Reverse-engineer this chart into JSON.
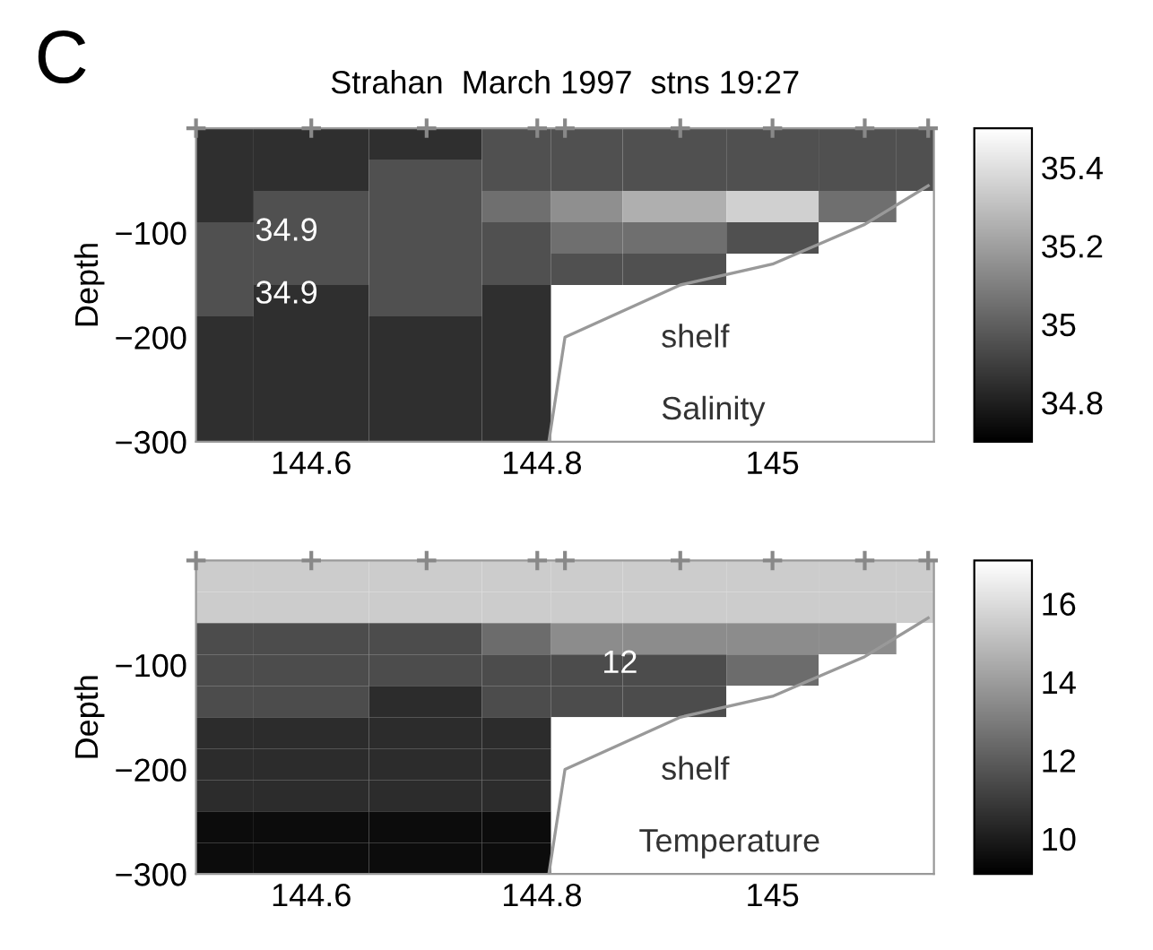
{
  "chart_data": [
    {
      "type": "heatmap",
      "title": "Strahan  March 1997  stns 19:27",
      "ylabel": "Depth",
      "x": [
        144.5,
        144.6,
        144.7,
        144.796,
        144.82,
        144.92,
        145.0,
        145.08,
        145.135
      ],
      "xlim": [
        144.5,
        145.14
      ],
      "ylim": [
        -300,
        0
      ],
      "xticks": [
        {
          "value": 144.6,
          "label": "144.6"
        },
        {
          "value": 144.8,
          "label": "144.8"
        },
        {
          "value": 145,
          "label": "145"
        }
      ],
      "yticks": [
        {
          "value": -300,
          "label": "−300"
        },
        {
          "value": -200,
          "label": "−200"
        },
        {
          "value": -100,
          "label": "−100"
        }
      ],
      "cells": [
        [
          34.85,
          34.85,
          34.85,
          34.95,
          34.95,
          34.95,
          34.95,
          34.95,
          34.95
        ],
        [
          34.85,
          34.85,
          34.95,
          34.95,
          34.95,
          34.95,
          34.95,
          34.95,
          34.95
        ],
        [
          34.85,
          34.95,
          34.95,
          35.05,
          35.15,
          35.25,
          35.35,
          35.05,
          null
        ],
        [
          34.95,
          34.95,
          34.95,
          34.95,
          35.05,
          35.05,
          34.95,
          null,
          null
        ],
        [
          34.95,
          34.95,
          34.95,
          34.95,
          34.95,
          34.95,
          null,
          null,
          null
        ],
        [
          34.95,
          34.85,
          34.95,
          34.85,
          null,
          null,
          null,
          null,
          null
        ],
        [
          34.85,
          34.85,
          34.85,
          34.85,
          null,
          null,
          null,
          null,
          null
        ],
        [
          34.85,
          34.85,
          34.85,
          34.85,
          null,
          null,
          null,
          null,
          null
        ],
        [
          34.85,
          34.85,
          34.85,
          34.85,
          null,
          null,
          null,
          null,
          null
        ],
        [
          34.85,
          34.85,
          34.85,
          34.85,
          null,
          null,
          null,
          null,
          null
        ]
      ],
      "clim": [
        34.7,
        35.5
      ],
      "cticks": [
        34.8,
        {
          "value": 35,
          "label": "35"
        },
        35.2,
        35.4
      ],
      "series": [
        {
          "type": "scatter",
          "marker": "cross",
          "color": "#888888",
          "x": [
            144.5,
            144.6,
            144.7,
            144.796,
            144.82,
            144.92,
            145.0,
            145.08,
            145.135
          ],
          "values": [
            0,
            0,
            0,
            0,
            0,
            0,
            0,
            0,
            0
          ]
        },
        {
          "type": "line",
          "color": "#999999",
          "x": [
            144.806,
            144.82,
            144.92,
            145.0,
            145.08,
            145.135
          ],
          "values": [
            -300,
            -200,
            -150,
            -130,
            -92,
            -55
          ]
        }
      ],
      "annotations": [
        "C",
        "shelf",
        "Salinity",
        "34.9",
        "34.9"
      ]
    },
    {
      "type": "heatmap",
      "ylabel": "Depth",
      "x": [
        144.5,
        144.6,
        144.7,
        144.796,
        144.82,
        144.92,
        145.0,
        145.08,
        145.135
      ],
      "xlim": [
        144.5,
        145.14
      ],
      "ylim": [
        -300,
        0
      ],
      "xticks": [
        {
          "value": 144.6,
          "label": "144.6"
        },
        {
          "value": 144.8,
          "label": "144.8"
        },
        {
          "value": 145,
          "label": "145"
        }
      ],
      "yticks": [
        {
          "value": -300,
          "label": "−300"
        },
        {
          "value": -200,
          "label": "−200"
        },
        {
          "value": -100,
          "label": "−100"
        }
      ],
      "cells": [
        [
          15.5,
          15.5,
          15.5,
          15.5,
          15.5,
          15.5,
          15.5,
          15.5,
          15.5
        ],
        [
          15.5,
          15.5,
          15.5,
          15.5,
          15.5,
          15.5,
          15.5,
          15.5,
          15.5
        ],
        [
          11.5,
          11.5,
          11.5,
          12.5,
          13.5,
          13.5,
          13.5,
          13.5,
          null
        ],
        [
          11.5,
          11.5,
          11.5,
          11.5,
          11.5,
          11.5,
          12.5,
          null,
          null
        ],
        [
          11.5,
          11.5,
          10.5,
          11.5,
          11.5,
          11.5,
          null,
          null,
          null
        ],
        [
          10.5,
          10.5,
          10.5,
          10.5,
          null,
          null,
          null,
          null,
          null
        ],
        [
          10.5,
          10.5,
          10.5,
          10.5,
          null,
          null,
          null,
          null,
          null
        ],
        [
          10.5,
          10.5,
          10.5,
          10.5,
          null,
          null,
          null,
          null,
          null
        ],
        [
          9.5,
          9.5,
          9.5,
          9.5,
          null,
          null,
          null,
          null,
          null
        ],
        [
          9.5,
          9.5,
          9.5,
          9.5,
          null,
          null,
          null,
          null,
          null
        ]
      ],
      "clim": [
        9.1,
        17.1
      ],
      "cticks": [
        10,
        12,
        14,
        16
      ],
      "series": [
        {
          "type": "scatter",
          "marker": "cross",
          "color": "#888888",
          "x": [
            144.5,
            144.6,
            144.7,
            144.796,
            144.82,
            144.92,
            145.0,
            145.08,
            145.135
          ],
          "values": [
            0,
            0,
            0,
            0,
            0,
            0,
            0,
            0,
            0
          ]
        },
        {
          "type": "line",
          "color": "#999999",
          "x": [
            144.806,
            144.82,
            144.92,
            145.0,
            145.08,
            145.135
          ],
          "values": [
            -300,
            -200,
            -150,
            -130,
            -92,
            -55
          ]
        }
      ],
      "annotations": [
        "shelf",
        "Temperature",
        "12"
      ]
    }
  ]
}
